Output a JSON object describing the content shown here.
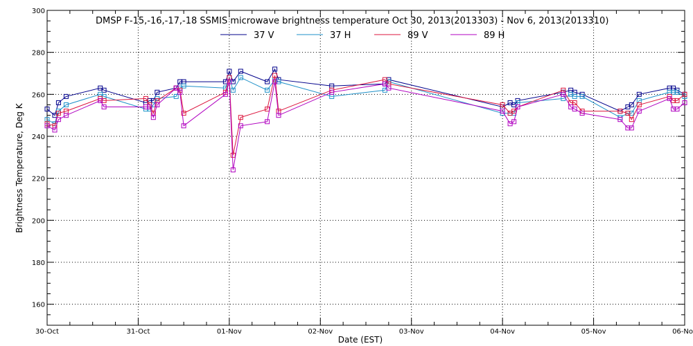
{
  "chart_data": {
    "type": "line",
    "title": "DMSP F-15,-16,-17,-18 SSMIS microwave brightness temperature Oct 30, 2013(2013303) - Nov  6, 2013(2013310)",
    "xlabel": "Date (EST)",
    "ylabel": "Brightness Temperature, Deg K",
    "ylim": [
      150,
      300
    ],
    "yticks": [
      160,
      180,
      200,
      220,
      240,
      260,
      280,
      300
    ],
    "xlim": [
      "2013-10-30T00:00",
      "2013-11-06T00:00"
    ],
    "xticks": [
      {
        "x": "2013-10-30T00:00",
        "label": "30-Oct"
      },
      {
        "x": "2013-10-31T00:00",
        "label": "31-Oct"
      },
      {
        "x": "2013-11-01T00:00",
        "label": "01-Nov"
      },
      {
        "x": "2013-11-02T00:00",
        "label": "02-Nov"
      },
      {
        "x": "2013-11-03T00:00",
        "label": "03-Nov"
      },
      {
        "x": "2013-11-04T00:00",
        "label": "04-Nov"
      },
      {
        "x": "2013-11-05T00:00",
        "label": "05-Nov"
      },
      {
        "x": "2013-11-06T00:00",
        "label": "06-Nov"
      }
    ],
    "grid": true,
    "legend_position": "top",
    "series": [
      {
        "name": "37 V",
        "color": "#00008b",
        "points": [
          [
            "2013-10-30T00:00",
            253
          ],
          [
            "2013-10-30T02:00",
            250
          ],
          [
            "2013-10-30T03:00",
            256
          ],
          [
            "2013-10-30T05:00",
            259
          ],
          [
            "2013-10-30T14:00",
            263
          ],
          [
            "2013-10-30T15:00",
            262
          ],
          [
            "2013-10-31T02:00",
            256
          ],
          [
            "2013-10-31T03:00",
            257
          ],
          [
            "2013-10-31T04:00",
            257
          ],
          [
            "2013-10-31T05:00",
            261
          ],
          [
            "2013-10-31T10:00",
            263
          ],
          [
            "2013-10-31T11:00",
            266
          ],
          [
            "2013-10-31T12:00",
            266
          ],
          [
            "2013-10-31T23:00",
            266
          ],
          [
            "2013-11-01T00:00",
            271
          ],
          [
            "2013-11-01T01:00",
            266
          ],
          [
            "2013-11-01T03:00",
            271
          ],
          [
            "2013-11-01T10:00",
            266
          ],
          [
            "2013-11-01T12:00",
            272
          ],
          [
            "2013-11-01T13:00",
            267
          ],
          [
            "2013-11-02T03:00",
            264
          ],
          [
            "2013-11-02T17:00",
            265
          ],
          [
            "2013-11-02T18:00",
            267
          ],
          [
            "2013-11-04T00:00",
            254
          ],
          [
            "2013-11-04T02:00",
            256
          ],
          [
            "2013-11-04T03:00",
            255
          ],
          [
            "2013-11-04T04:00",
            257
          ],
          [
            "2013-11-04T16:00",
            261
          ],
          [
            "2013-11-04T18:00",
            262
          ],
          [
            "2013-11-04T19:00",
            261
          ],
          [
            "2013-11-04T21:00",
            260
          ],
          [
            "2013-11-05T07:00",
            252
          ],
          [
            "2013-11-05T09:00",
            254
          ],
          [
            "2013-11-05T10:00",
            255
          ],
          [
            "2013-11-05T12:00",
            260
          ],
          [
            "2013-11-05T20:00",
            263
          ],
          [
            "2013-11-05T21:00",
            263
          ],
          [
            "2013-11-05T22:00",
            262
          ],
          [
            "2013-11-06T00:00",
            260
          ]
        ]
      },
      {
        "name": "37 H",
        "color": "#1e90c8",
        "points": [
          [
            "2013-10-30T00:00",
            248
          ],
          [
            "2013-10-30T02:00",
            246
          ],
          [
            "2013-10-30T03:00",
            252
          ],
          [
            "2013-10-30T05:00",
            255
          ],
          [
            "2013-10-30T14:00",
            260
          ],
          [
            "2013-10-30T15:00",
            259
          ],
          [
            "2013-10-31T02:00",
            253
          ],
          [
            "2013-10-31T03:00",
            253
          ],
          [
            "2013-10-31T04:00",
            255
          ],
          [
            "2013-10-31T05:00",
            258
          ],
          [
            "2013-10-31T10:00",
            259
          ],
          [
            "2013-10-31T11:00",
            263
          ],
          [
            "2013-10-31T12:00",
            264
          ],
          [
            "2013-10-31T23:00",
            263
          ],
          [
            "2013-11-01T00:00",
            268
          ],
          [
            "2013-11-01T01:00",
            262
          ],
          [
            "2013-11-01T03:00",
            268
          ],
          [
            "2013-11-01T10:00",
            262
          ],
          [
            "2013-11-01T12:00",
            267
          ],
          [
            "2013-11-01T13:00",
            266
          ],
          [
            "2013-11-02T03:00",
            259
          ],
          [
            "2013-11-02T17:00",
            262
          ],
          [
            "2013-11-02T18:00",
            266
          ],
          [
            "2013-11-04T00:00",
            251
          ],
          [
            "2013-11-04T02:00",
            251
          ],
          [
            "2013-11-04T03:00",
            251
          ],
          [
            "2013-11-04T04:00",
            256
          ],
          [
            "2013-11-04T16:00",
            258
          ],
          [
            "2013-11-04T18:00",
            260
          ],
          [
            "2013-11-04T19:00",
            259
          ],
          [
            "2013-11-04T21:00",
            259
          ],
          [
            "2013-11-05T07:00",
            249
          ],
          [
            "2013-11-05T09:00",
            251
          ],
          [
            "2013-11-05T10:00",
            251
          ],
          [
            "2013-11-05T12:00",
            257
          ],
          [
            "2013-11-05T20:00",
            261
          ],
          [
            "2013-11-05T21:00",
            261
          ],
          [
            "2013-11-05T22:00",
            261
          ],
          [
            "2013-11-06T00:00",
            259
          ]
        ]
      },
      {
        "name": "89 V",
        "color": "#dc143c",
        "points": [
          [
            "2013-10-30T00:00",
            246
          ],
          [
            "2013-10-30T02:00",
            245
          ],
          [
            "2013-10-30T03:00",
            251
          ],
          [
            "2013-10-30T05:00",
            252
          ],
          [
            "2013-10-30T14:00",
            258
          ],
          [
            "2013-10-30T15:00",
            257
          ],
          [
            "2013-10-31T02:00",
            258
          ],
          [
            "2013-10-31T03:00",
            255
          ],
          [
            "2013-10-31T04:00",
            251
          ],
          [
            "2013-10-31T05:00",
            257
          ],
          [
            "2013-10-31T10:00",
            263
          ],
          [
            "2013-10-31T11:00",
            262
          ],
          [
            "2013-10-31T12:00",
            251
          ],
          [
            "2013-10-31T23:00",
            261
          ],
          [
            "2013-11-01T00:00",
            268
          ],
          [
            "2013-11-01T01:00",
            231
          ],
          [
            "2013-11-01T03:00",
            249
          ],
          [
            "2013-11-01T10:00",
            253
          ],
          [
            "2013-11-01T12:00",
            269
          ],
          [
            "2013-11-01T13:00",
            252
          ],
          [
            "2013-11-02T03:00",
            262
          ],
          [
            "2013-11-02T17:00",
            267
          ],
          [
            "2013-11-02T18:00",
            265
          ],
          [
            "2013-11-04T00:00",
            255
          ],
          [
            "2013-11-04T02:00",
            251
          ],
          [
            "2013-11-04T03:00",
            252
          ],
          [
            "2013-11-04T04:00",
            254
          ],
          [
            "2013-11-04T16:00",
            262
          ],
          [
            "2013-11-04T18:00",
            256
          ],
          [
            "2013-11-04T19:00",
            256
          ],
          [
            "2013-11-04T21:00",
            252
          ],
          [
            "2013-11-05T07:00",
            252
          ],
          [
            "2013-11-05T09:00",
            251
          ],
          [
            "2013-11-05T10:00",
            248
          ],
          [
            "2013-11-05T12:00",
            255
          ],
          [
            "2013-11-05T20:00",
            259
          ],
          [
            "2013-11-05T21:00",
            257
          ],
          [
            "2013-11-05T22:00",
            257
          ],
          [
            "2013-11-06T00:00",
            260
          ]
        ]
      },
      {
        "name": "89 H",
        "color": "#b000c0",
        "points": [
          [
            "2013-10-30T00:00",
            245
          ],
          [
            "2013-10-30T02:00",
            243
          ],
          [
            "2013-10-30T03:00",
            248
          ],
          [
            "2013-10-30T05:00",
            250
          ],
          [
            "2013-10-30T14:00",
            257
          ],
          [
            "2013-10-30T15:00",
            254
          ],
          [
            "2013-10-31T02:00",
            254
          ],
          [
            "2013-10-31T03:00",
            254
          ],
          [
            "2013-10-31T04:00",
            249
          ],
          [
            "2013-10-31T05:00",
            255
          ],
          [
            "2013-10-31T10:00",
            263
          ],
          [
            "2013-10-31T11:00",
            261
          ],
          [
            "2013-10-31T12:00",
            245
          ],
          [
            "2013-10-31T23:00",
            260
          ],
          [
            "2013-11-01T00:00",
            266
          ],
          [
            "2013-11-01T01:00",
            224
          ],
          [
            "2013-11-01T03:00",
            245
          ],
          [
            "2013-11-01T10:00",
            247
          ],
          [
            "2013-11-01T12:00",
            266
          ],
          [
            "2013-11-01T13:00",
            250
          ],
          [
            "2013-11-02T03:00",
            261
          ],
          [
            "2013-11-02T17:00",
            265
          ],
          [
            "2013-11-02T18:00",
            263
          ],
          [
            "2013-11-04T00:00",
            252
          ],
          [
            "2013-11-04T02:00",
            246
          ],
          [
            "2013-11-04T03:00",
            247
          ],
          [
            "2013-11-04T04:00",
            254
          ],
          [
            "2013-11-04T16:00",
            260
          ],
          [
            "2013-11-04T18:00",
            254
          ],
          [
            "2013-11-04T19:00",
            253
          ],
          [
            "2013-11-04T21:00",
            251
          ],
          [
            "2013-11-05T07:00",
            248
          ],
          [
            "2013-11-05T09:00",
            244
          ],
          [
            "2013-11-05T10:00",
            244
          ],
          [
            "2013-11-05T12:00",
            252
          ],
          [
            "2013-11-05T20:00",
            258
          ],
          [
            "2013-11-05T21:00",
            253
          ],
          [
            "2013-11-05T22:00",
            253
          ],
          [
            "2013-11-06T00:00",
            256
          ]
        ]
      }
    ]
  }
}
